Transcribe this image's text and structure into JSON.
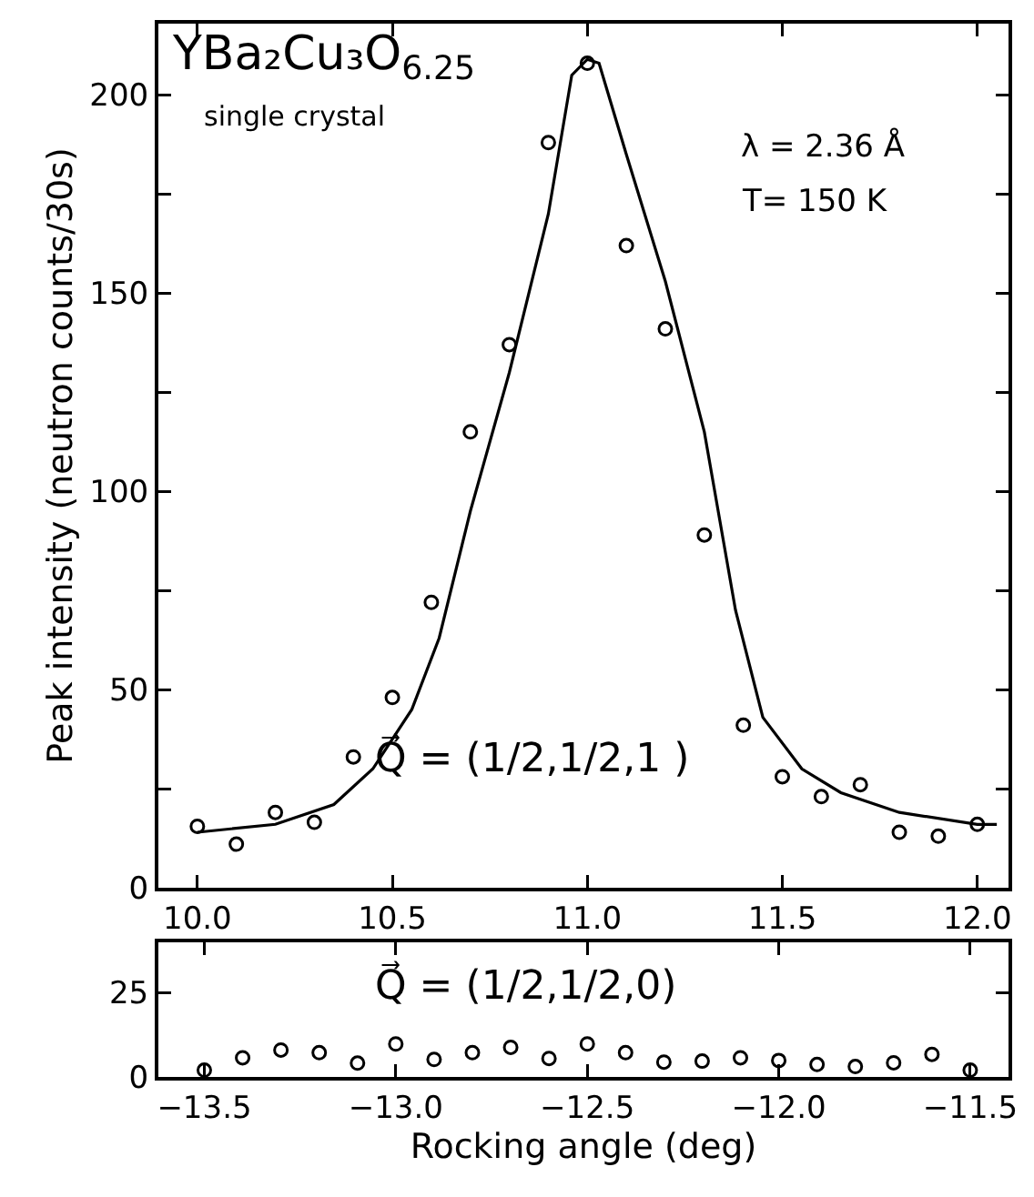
{
  "chart_data": [
    {
      "type": "scatter",
      "ylabel": "Peak intensity (neutron counts/30s)",
      "xlim": [
        9.9,
        12.08
      ],
      "ylim": [
        0,
        218
      ],
      "xticks": [
        {
          "value": 10,
          "label": "10.0"
        },
        10.5,
        {
          "value": 11,
          "label": "11.0"
        },
        11.5,
        {
          "value": 12,
          "label": "12.0"
        }
      ],
      "yticks": [
        0,
        {
          "value": 25,
          "label": null
        },
        50,
        {
          "value": 75,
          "label": null
        },
        100,
        {
          "value": 125,
          "label": null
        },
        150,
        {
          "value": 175,
          "label": null
        },
        200
      ],
      "annotations": [
        "YBa₂Cu₃O$_{6.25}$",
        "single crystal",
        "λ = 2.36 Å",
        "T= 150 K",
        "Q⃗ = (1/2,1/2,1 )"
      ],
      "series": [
        {
          "type": "scatter",
          "color": "#000000",
          "marker": "circle",
          "x": [
            10.0,
            10.1,
            10.2,
            10.3,
            10.4,
            10.5,
            10.6,
            10.7,
            10.8,
            10.9,
            11.0,
            11.1,
            11.2,
            11.3,
            11.4,
            11.5,
            11.6,
            11.7,
            11.8,
            11.9,
            12.0
          ],
          "values": [
            15.5,
            11,
            19,
            16.5,
            33,
            48,
            72,
            115,
            137,
            188,
            208,
            162,
            141,
            89,
            41,
            28,
            23,
            26,
            14,
            13,
            16
          ]
        },
        {
          "type": "line",
          "color": "#000000",
          "marker": "none",
          "line_style": "solid",
          "x": [
            10.0,
            10.2,
            10.35,
            10.45,
            10.55,
            10.62,
            10.7,
            10.8,
            10.9,
            10.96,
            11.0,
            11.03,
            11.1,
            11.2,
            11.3,
            11.38,
            11.45,
            11.55,
            11.65,
            11.8,
            12.0,
            12.05
          ],
          "values": [
            14,
            16,
            21,
            30,
            45,
            63,
            95,
            130,
            170,
            205,
            209,
            208,
            185,
            153,
            115,
            70,
            43,
            30,
            24,
            19,
            16,
            16
          ]
        }
      ]
    },
    {
      "type": "scatter",
      "xlabel": "Rocking angle (deg)",
      "xlim": [
        -13.62,
        -11.4
      ],
      "ylim": [
        0,
        40
      ],
      "xticks": [
        {
          "value": -13.5,
          "label": "−13.5"
        },
        {
          "value": -13,
          "label": "−13.0"
        },
        {
          "value": -12.5,
          "label": "−12.5"
        },
        {
          "value": -12,
          "label": "−12.0"
        },
        {
          "value": -11.5,
          "label": "−11.5"
        }
      ],
      "yticks": [
        0,
        25
      ],
      "annotations": [
        "Q⃗ = (1/2,1/2,0)"
      ],
      "series": [
        {
          "type": "scatter",
          "color": "#000000",
          "marker": "circle",
          "x": [
            -13.5,
            -13.4,
            -13.3,
            -13.2,
            -13.1,
            -13.0,
            -12.9,
            -12.8,
            -12.7,
            -12.6,
            -12.5,
            -12.4,
            -12.3,
            -12.2,
            -12.1,
            -12.0,
            -11.9,
            -11.8,
            -11.7,
            -11.6,
            -11.5
          ],
          "values": [
            2,
            5.7,
            8,
            7.2,
            4.1,
            9.8,
            5.2,
            7.2,
            8.8,
            5.5,
            9.8,
            7.2,
            4.4,
            4.7,
            5.7,
            4.9,
            3.7,
            3.1,
            4.2,
            6.7,
            2
          ]
        }
      ]
    }
  ]
}
